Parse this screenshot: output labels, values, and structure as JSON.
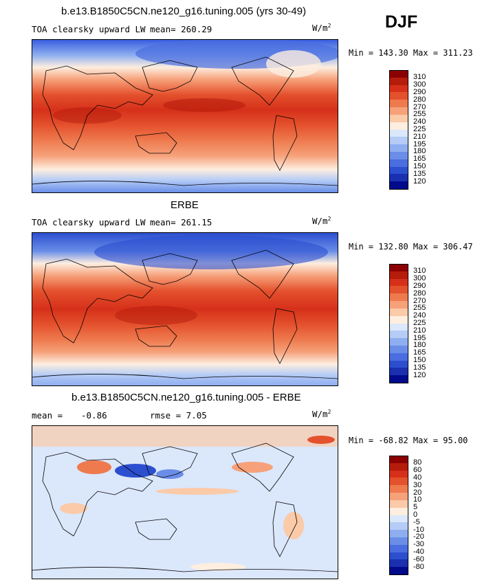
{
  "season": "DJF",
  "panels": [
    {
      "title": "b.e13.B1850C5CN.ne120_g16.tuning.005 (yrs 30-49)",
      "left_label": "TOA clearsky upward LW",
      "stat1": "mean= 260.29",
      "stat2": "",
      "units": "W/m",
      "units_sup": "2",
      "minmax": "Min = 143.30 Max = 311.23",
      "kind": "model"
    },
    {
      "title": "ERBE",
      "left_label": "TOA clearsky upward LW",
      "stat1": "mean= 261.15",
      "stat2": "",
      "units": "W/m",
      "units_sup": "2",
      "minmax": "Min = 132.80 Max = 306.47",
      "kind": "obs"
    },
    {
      "title": "b.e13.B1850C5CN.ne120_g16.tuning.005 - ERBE",
      "left_label": "mean =",
      "stat1": "-0.86",
      "stat2": "rmse =   7.05",
      "units": "W/m",
      "units_sup": "2",
      "minmax": "Min = -68.82 Max =  95.00",
      "kind": "diff"
    }
  ],
  "legend_abs": {
    "levels": [
      "310",
      "300",
      "290",
      "280",
      "270",
      "255",
      "240",
      "225",
      "210",
      "195",
      "180",
      "165",
      "150",
      "135",
      "120"
    ],
    "colors": [
      "#8b0000",
      "#b51c0b",
      "#d6301a",
      "#e4512d",
      "#ee7a4e",
      "#f6a17a",
      "#fbcaa8",
      "#fdeee0",
      "#dbe7fb",
      "#b5ccf6",
      "#8eaef0",
      "#6a8ee8",
      "#4a6ee0",
      "#2c4fd0",
      "#1a30b0",
      "#000a8a"
    ]
  },
  "legend_diff": {
    "levels": [
      "80",
      "60",
      "40",
      "30",
      "20",
      "10",
      "5",
      "0",
      "-5",
      "-10",
      "-20",
      "-30",
      "-40",
      "-60",
      "-80"
    ],
    "colors": [
      "#8b0000",
      "#b51c0b",
      "#d6301a",
      "#e4512d",
      "#ee7a4e",
      "#f6a17a",
      "#fbcaa8",
      "#fdeee0",
      "#dbe7fb",
      "#b5ccf6",
      "#8eaef0",
      "#6a8ee8",
      "#4a6ee0",
      "#2c4fd0",
      "#1a30b0",
      "#000a8a"
    ]
  }
}
